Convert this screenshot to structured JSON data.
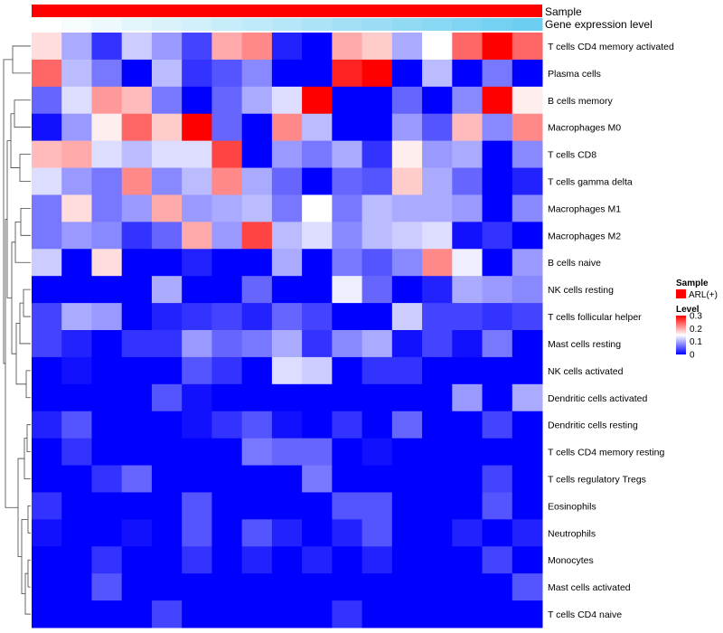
{
  "chart_data": {
    "type": "heatmap",
    "title": "",
    "column_count": 17,
    "rows": [
      "T cells CD4 memory activated",
      "Plasma cells",
      "B cells memory",
      "Macrophages M0",
      "T cells CD8",
      "T cells gamma delta",
      "Macrophages M1",
      "Macrophages M2",
      "B cells naive",
      "NK cells resting",
      "T cells follicular helper",
      "Mast cells resting",
      "NK cells activated",
      "Dendritic cells activated",
      "Dendritic cells resting",
      "T cells CD4 memory resting",
      "T cells regulatory  Tregs",
      "Eosinophils",
      "Neutrophils",
      "Monocytes",
      "Mast cells activated",
      "T cells CD4 naive"
    ],
    "values": [
      [
        0.17,
        0.1,
        0.03,
        0.12,
        0.09,
        0.04,
        0.2,
        0.22,
        0.02,
        0.0,
        0.2,
        0.18,
        0.1,
        0.15,
        0.24,
        0.3,
        0.24
      ],
      [
        0.24,
        0.11,
        0.07,
        0.0,
        0.11,
        0.03,
        0.05,
        0.08,
        0.0,
        0.0,
        0.28,
        0.3,
        0.0,
        0.11,
        0.0,
        0.07,
        0.0
      ],
      [
        0.06,
        0.13,
        0.21,
        0.19,
        0.07,
        0.0,
        0.06,
        0.1,
        0.13,
        0.3,
        0.0,
        0.0,
        0.06,
        0.0,
        0.08,
        0.3,
        0.16
      ],
      [
        0.01,
        0.09,
        0.16,
        0.24,
        0.18,
        0.3,
        0.06,
        0.0,
        0.22,
        0.11,
        0.0,
        0.0,
        0.09,
        0.05,
        0.19,
        0.08,
        0.22
      ],
      [
        0.19,
        0.2,
        0.13,
        0.11,
        0.13,
        0.13,
        0.26,
        0.0,
        0.09,
        0.07,
        0.1,
        0.03,
        0.16,
        0.09,
        0.1,
        0.0,
        0.08
      ],
      [
        0.13,
        0.09,
        0.07,
        0.22,
        0.08,
        0.11,
        0.22,
        0.1,
        0.06,
        0.0,
        0.06,
        0.05,
        0.18,
        0.1,
        0.06,
        0.0,
        0.02
      ],
      [
        0.07,
        0.17,
        0.07,
        0.09,
        0.2,
        0.09,
        0.1,
        0.11,
        0.07,
        0.15,
        0.07,
        0.11,
        0.1,
        0.1,
        0.09,
        0.0,
        0.08
      ],
      [
        0.07,
        0.09,
        0.08,
        0.03,
        0.06,
        0.2,
        0.09,
        0.26,
        0.11,
        0.13,
        0.08,
        0.11,
        0.12,
        0.13,
        0.01,
        0.03,
        0.0
      ],
      [
        0.12,
        0.0,
        0.17,
        0.0,
        0.0,
        0.02,
        0.0,
        0.0,
        0.1,
        0.0,
        0.07,
        0.05,
        0.08,
        0.22,
        0.14,
        0.0,
        0.09
      ],
      [
        0.0,
        0.0,
        0.0,
        0.0,
        0.1,
        0.0,
        0.0,
        0.06,
        0.0,
        0.0,
        0.14,
        0.06,
        0.0,
        0.02,
        0.1,
        0.09,
        0.08
      ],
      [
        0.04,
        0.1,
        0.09,
        0.0,
        0.02,
        0.03,
        0.04,
        0.02,
        0.06,
        0.04,
        0.0,
        0.0,
        0.12,
        0.04,
        0.04,
        0.03,
        0.04
      ],
      [
        0.04,
        0.02,
        0.0,
        0.03,
        0.03,
        0.09,
        0.06,
        0.07,
        0.1,
        0.03,
        0.08,
        0.1,
        0.01,
        0.04,
        0.01,
        0.07,
        0.0
      ],
      [
        0.0,
        0.01,
        0.0,
        0.0,
        0.0,
        0.05,
        0.03,
        0.0,
        0.13,
        0.12,
        0.0,
        0.03,
        0.03,
        0.0,
        0.0,
        0.0,
        0.0
      ],
      [
        0.0,
        0.0,
        0.0,
        0.0,
        0.05,
        0.01,
        0.0,
        0.0,
        0.0,
        0.0,
        0.0,
        0.0,
        0.0,
        0.0,
        0.09,
        0.0,
        0.1
      ],
      [
        0.02,
        0.05,
        0.0,
        0.0,
        0.0,
        0.01,
        0.03,
        0.05,
        0.01,
        0.0,
        0.03,
        0.0,
        0.06,
        0.0,
        0.0,
        0.04,
        0.0
      ],
      [
        0.0,
        0.03,
        0.0,
        0.0,
        0.0,
        0.0,
        0.0,
        0.07,
        0.06,
        0.06,
        0.0,
        0.01,
        0.0,
        0.0,
        0.0,
        0.0,
        0.0
      ],
      [
        0.0,
        0.0,
        0.03,
        0.06,
        0.0,
        0.0,
        0.0,
        0.0,
        0.0,
        0.07,
        0.0,
        0.0,
        0.0,
        0.0,
        0.0,
        0.04,
        0.0
      ],
      [
        0.03,
        0.0,
        0.0,
        0.0,
        0.0,
        0.05,
        0.0,
        0.0,
        0.0,
        0.0,
        0.05,
        0.05,
        0.0,
        0.0,
        0.0,
        0.05,
        0.0
      ],
      [
        0.01,
        0.0,
        0.0,
        0.01,
        0.0,
        0.05,
        0.0,
        0.05,
        0.02,
        0.0,
        0.02,
        0.05,
        0.0,
        0.0,
        0.02,
        0.0,
        0.02
      ],
      [
        0.0,
        0.0,
        0.03,
        0.0,
        0.0,
        0.03,
        0.0,
        0.02,
        0.0,
        0.02,
        0.0,
        0.02,
        0.0,
        0.0,
        0.0,
        0.04,
        0.0
      ],
      [
        0.0,
        0.0,
        0.05,
        0.0,
        0.0,
        0.0,
        0.0,
        0.0,
        0.0,
        0.0,
        0.0,
        0.0,
        0.0,
        0.0,
        0.0,
        0.0,
        0.05
      ],
      [
        0.0,
        0.0,
        0.0,
        0.0,
        0.04,
        0.0,
        0.0,
        0.0,
        0.0,
        0.0,
        0.03,
        0.0,
        0.0,
        0.0,
        0.0,
        0.0,
        0.0
      ]
    ],
    "color_scale": {
      "min": 0,
      "mid": 0.15,
      "max": 0.3,
      "low": "#0000ff",
      "midColor": "#ffffff",
      "high": "#ff0000"
    },
    "annotations": [
      {
        "name": "Sample",
        "color": "#ff0000"
      },
      {
        "name": "Gene expression level",
        "values": [
          0.0,
          0.06,
          0.12,
          0.18,
          0.24,
          0.3,
          0.36,
          0.42,
          0.48,
          0.54,
          0.6,
          0.66,
          0.72,
          0.78,
          0.84,
          0.9,
          0.96
        ],
        "low": "#ffffff",
        "high": "#66ccf0"
      }
    ],
    "legend": {
      "sample_title": "Sample",
      "sample_entry": "ARL(+)",
      "sample_color": "#ff0000",
      "level_title": "Level",
      "level_ticks": [
        "0.3",
        "0.2",
        "0.1",
        "0"
      ],
      "level_tick_values": [
        0.3,
        0.2,
        0.1,
        0
      ],
      "placement": "right"
    },
    "dendrogram": "rows, left side"
  }
}
